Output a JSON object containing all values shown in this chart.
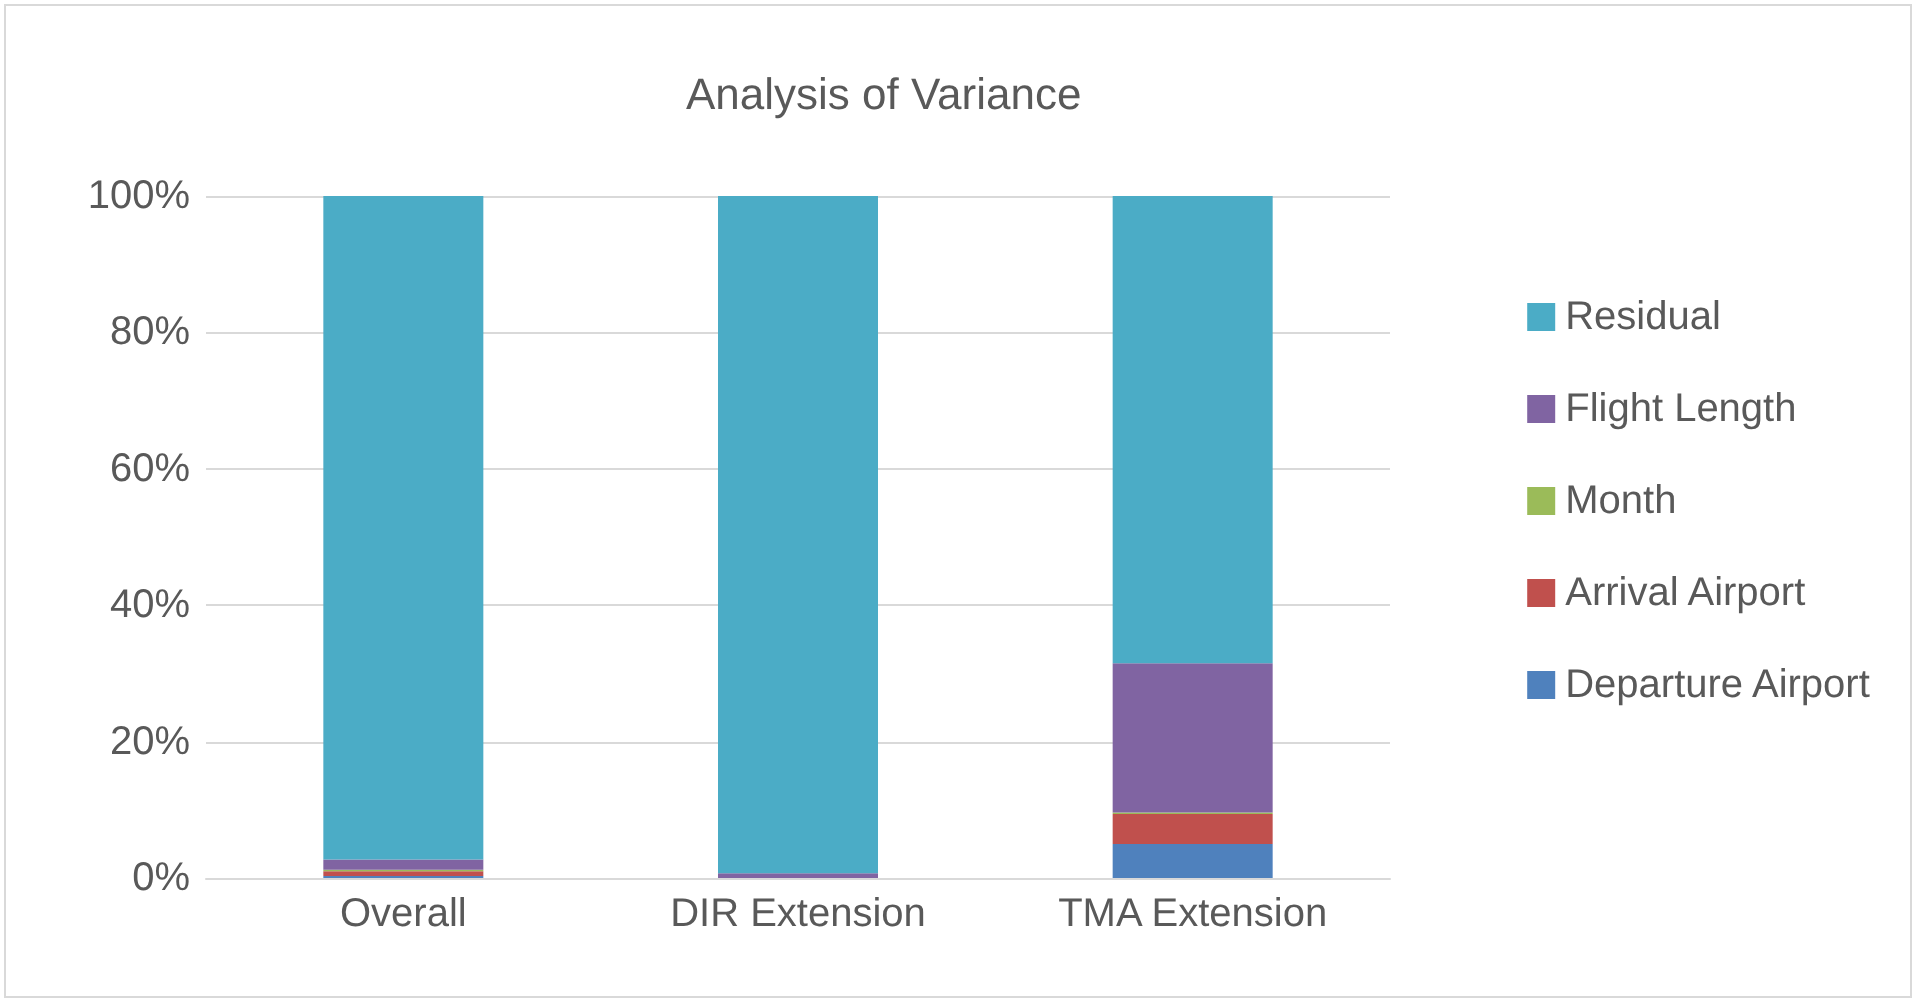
{
  "chart_data": {
    "type": "bar",
    "title": "Analysis of Variance",
    "categories": [
      "Overall",
      "DIR Extension",
      "TMA Extension"
    ],
    "stacked": true,
    "series": [
      {
        "name": "Departure Airport",
        "color": "#4f81bd",
        "values": [
          0.3,
          0,
          5.0
        ]
      },
      {
        "name": "Arrival Airport",
        "color": "#c0504d",
        "values": [
          0.7,
          0,
          4.4
        ]
      },
      {
        "name": "Month",
        "color": "#9bbb59",
        "values": [
          0.2,
          0,
          0.2
        ]
      },
      {
        "name": "Flight Length",
        "color": "#8064a2",
        "values": [
          1.5,
          0.7,
          21.9
        ]
      },
      {
        "name": "Residual",
        "color": "#4bacc6",
        "values": [
          97.3,
          99.3,
          68.5
        ]
      }
    ],
    "ylim": [
      0,
      100
    ],
    "yticks": [
      {
        "value": 0,
        "label": "0%"
      },
      {
        "value": 20,
        "label": "20%"
      },
      {
        "value": 40,
        "label": "40%"
      },
      {
        "value": 60,
        "label": "60%"
      },
      {
        "value": 80,
        "label": "80%"
      },
      {
        "value": 100,
        "label": "100%"
      }
    ],
    "grid": "y",
    "legend": "right"
  }
}
